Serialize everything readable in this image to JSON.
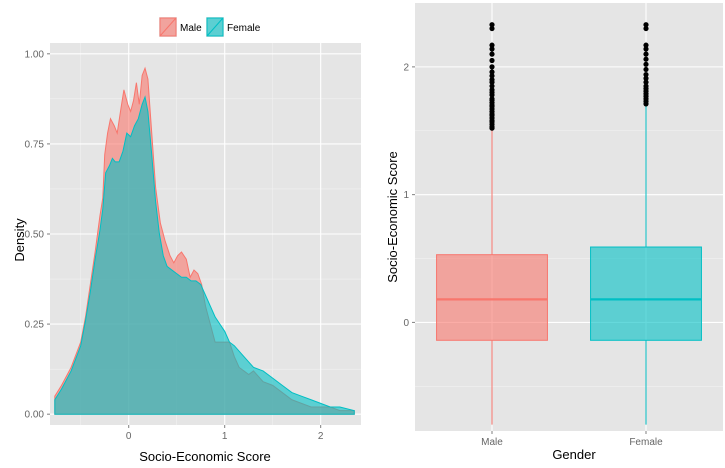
{
  "chart_data": [
    {
      "type": "area",
      "xlabel": "Socio-Economic Score",
      "ylabel": "Density",
      "xlim": [
        -0.82,
        2.42
      ],
      "ylim": [
        -0.03,
        1.03
      ],
      "x_ticks": [
        0,
        1,
        2
      ],
      "y_ticks": [
        0.0,
        0.25,
        0.5,
        0.75,
        1.0
      ],
      "x_tick_labels": [
        "0",
        "1",
        "2"
      ],
      "y_tick_labels": [
        "0.00",
        "0.25",
        "0.50",
        "0.75",
        "1.00"
      ],
      "grid": true,
      "legend_position": "top",
      "legend": [
        "Male",
        "Female"
      ],
      "colors": {
        "Male": "#F8766D",
        "Female": "#00BFC4"
      },
      "series": [
        {
          "name": "Male",
          "color": "#F8766D",
          "x": [
            -0.77,
            -0.7,
            -0.6,
            -0.5,
            -0.45,
            -0.4,
            -0.35,
            -0.3,
            -0.27,
            -0.25,
            -0.22,
            -0.19,
            -0.15,
            -0.12,
            -0.08,
            -0.05,
            -0.01,
            0.02,
            0.05,
            0.08,
            0.11,
            0.14,
            0.17,
            0.2,
            0.24,
            0.28,
            0.33,
            0.38,
            0.43,
            0.47,
            0.51,
            0.55,
            0.6,
            0.64,
            0.68,
            0.72,
            0.76,
            0.8,
            0.85,
            0.9,
            0.95,
            1.0,
            1.05,
            1.1,
            1.15,
            1.2,
            1.25,
            1.3,
            1.4,
            1.5,
            1.6,
            1.7,
            1.8,
            1.9,
            2.0,
            2.1,
            2.2,
            2.35
          ],
          "y": [
            0.05,
            0.08,
            0.13,
            0.2,
            0.27,
            0.36,
            0.45,
            0.55,
            0.6,
            0.72,
            0.78,
            0.82,
            0.8,
            0.78,
            0.85,
            0.9,
            0.86,
            0.84,
            0.87,
            0.92,
            0.86,
            0.94,
            0.96,
            0.93,
            0.78,
            0.63,
            0.53,
            0.48,
            0.44,
            0.42,
            0.44,
            0.45,
            0.43,
            0.38,
            0.4,
            0.39,
            0.36,
            0.3,
            0.25,
            0.2,
            0.2,
            0.2,
            0.2,
            0.16,
            0.13,
            0.12,
            0.11,
            0.12,
            0.09,
            0.08,
            0.06,
            0.04,
            0.03,
            0.02,
            0.02,
            0.02,
            0.01,
            0.01
          ]
        },
        {
          "name": "Female",
          "color": "#00BFC4",
          "x": [
            -0.77,
            -0.7,
            -0.6,
            -0.5,
            -0.45,
            -0.4,
            -0.35,
            -0.3,
            -0.27,
            -0.24,
            -0.2,
            -0.17,
            -0.14,
            -0.1,
            -0.06,
            -0.02,
            0.02,
            0.06,
            0.1,
            0.14,
            0.17,
            0.2,
            0.24,
            0.28,
            0.32,
            0.36,
            0.4,
            0.45,
            0.5,
            0.55,
            0.6,
            0.65,
            0.7,
            0.75,
            0.8,
            0.85,
            0.9,
            0.95,
            1.0,
            1.05,
            1.1,
            1.2,
            1.3,
            1.4,
            1.5,
            1.6,
            1.7,
            1.8,
            1.9,
            2.0,
            2.1,
            2.2,
            2.35
          ],
          "y": [
            0.04,
            0.07,
            0.12,
            0.19,
            0.26,
            0.34,
            0.43,
            0.51,
            0.57,
            0.67,
            0.69,
            0.71,
            0.7,
            0.7,
            0.73,
            0.78,
            0.77,
            0.8,
            0.82,
            0.86,
            0.88,
            0.84,
            0.72,
            0.59,
            0.5,
            0.44,
            0.41,
            0.4,
            0.39,
            0.38,
            0.38,
            0.37,
            0.37,
            0.36,
            0.33,
            0.3,
            0.27,
            0.25,
            0.23,
            0.2,
            0.19,
            0.16,
            0.13,
            0.12,
            0.1,
            0.08,
            0.06,
            0.05,
            0.04,
            0.03,
            0.02,
            0.02,
            0.01
          ]
        }
      ]
    },
    {
      "type": "box",
      "xlabel": "Gender",
      "ylabel": "Socio-Economic Score",
      "ylim": [
        -0.85,
        2.5
      ],
      "y_ticks": [
        0,
        1,
        2
      ],
      "y_tick_labels": [
        "0",
        "1",
        "2"
      ],
      "grid": true,
      "categories": [
        "Male",
        "Female"
      ],
      "boxes": [
        {
          "name": "Male",
          "color": "#F8766D",
          "min": -0.8,
          "q1": -0.14,
          "median": 0.18,
          "q3": 0.53,
          "whisker_high": 1.51,
          "outliers": [
            1.52,
            1.53,
            1.55,
            1.57,
            1.58,
            1.6,
            1.62,
            1.63,
            1.65,
            1.67,
            1.69,
            1.7,
            1.72,
            1.74,
            1.75,
            1.78,
            1.8,
            1.82,
            1.85,
            1.88,
            1.9,
            1.93,
            1.96,
            2.0,
            2.05,
            2.1,
            2.14,
            2.17,
            2.3,
            2.33
          ]
        },
        {
          "name": "Female",
          "color": "#00BFC4",
          "min": -0.8,
          "q1": -0.14,
          "median": 0.18,
          "q3": 0.59,
          "whisker_high": 1.7,
          "outliers": [
            1.71,
            1.73,
            1.75,
            1.77,
            1.79,
            1.81,
            1.83,
            1.85,
            1.88,
            1.91,
            1.94,
            1.98,
            2.02,
            2.06,
            2.1,
            2.14,
            2.17,
            2.3,
            2.33
          ]
        }
      ]
    }
  ]
}
